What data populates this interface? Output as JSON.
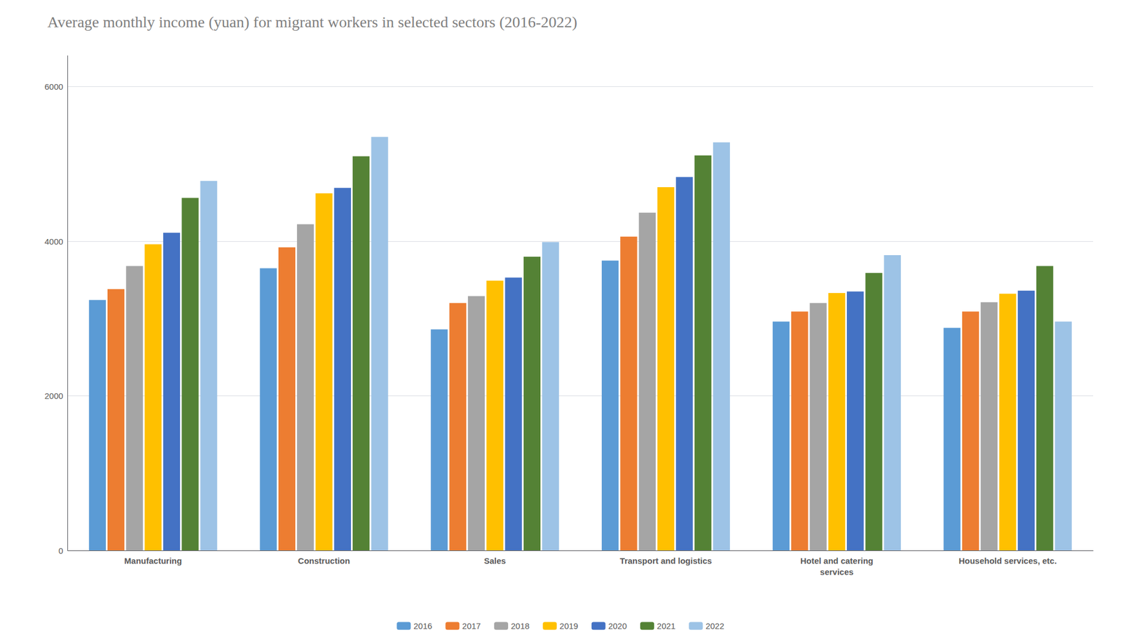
{
  "chart_data": {
    "type": "bar",
    "title": "Average monthly income (yuan) for migrant workers in selected sectors (2016-2022)",
    "categories": [
      "Manufacturing",
      "Construction",
      "Sales",
      "Transport and logistics",
      "Hotel and catering\nservices",
      "Household services, etc."
    ],
    "series": [
      {
        "name": "2016",
        "color": "#5B9BD5",
        "values": [
          3240,
          3650,
          2860,
          3750,
          2960,
          2880
        ]
      },
      {
        "name": "2017",
        "color": "#ED7D31",
        "values": [
          3380,
          3920,
          3200,
          4060,
          3090,
          3090
        ]
      },
      {
        "name": "2018",
        "color": "#A5A5A5",
        "values": [
          3680,
          4220,
          3290,
          4370,
          3200,
          3210
        ]
      },
      {
        "name": "2019",
        "color": "#FFC000",
        "values": [
          3960,
          4620,
          3490,
          4700,
          3330,
          3320
        ]
      },
      {
        "name": "2020",
        "color": "#4472C4",
        "values": [
          4110,
          4690,
          3530,
          4830,
          3350,
          3360
        ]
      },
      {
        "name": "2021",
        "color": "#548235",
        "values": [
          4560,
          5100,
          3800,
          5110,
          3590,
          3680
        ]
      },
      {
        "name": "2022",
        "color": "#9DC3E6",
        "values": [
          4780,
          5350,
          3990,
          5280,
          3820,
          2960
        ]
      }
    ],
    "ylim": [
      0,
      6400
    ],
    "yticks": [
      0,
      2000,
      4000,
      6000
    ],
    "grid": true,
    "legend": "bottom"
  }
}
